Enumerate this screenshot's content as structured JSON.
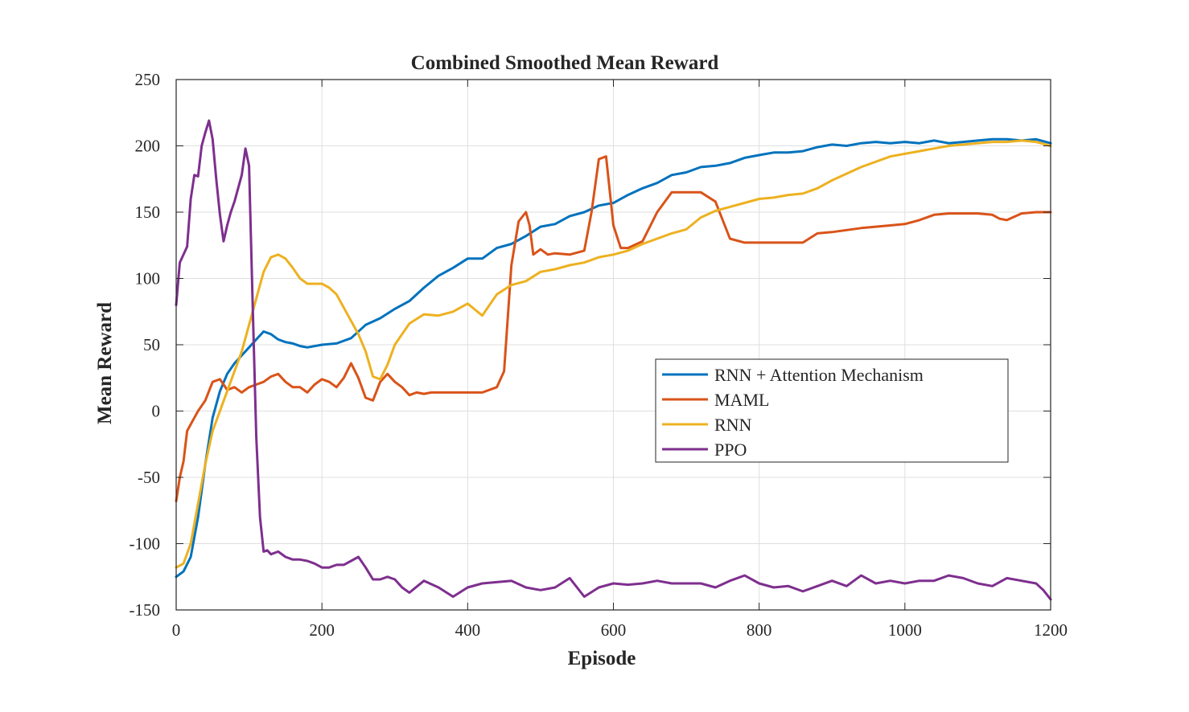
{
  "chart_data": {
    "type": "line",
    "title": "Combined Smoothed Mean Reward",
    "xlabel": "Episode",
    "ylabel": "Mean Reward",
    "xlim": [
      0,
      1200
    ],
    "ylim": [
      -150,
      250
    ],
    "xticks": [
      0,
      200,
      400,
      600,
      800,
      1000,
      1200
    ],
    "yticks": [
      -150,
      -100,
      -50,
      0,
      50,
      100,
      150,
      200,
      250
    ],
    "grid": true,
    "legend_position": "right",
    "series": [
      {
        "name": "RNN + Attention Mechanism",
        "color": "#0072BD",
        "x": [
          0,
          10,
          20,
          30,
          40,
          50,
          60,
          70,
          80,
          90,
          100,
          110,
          120,
          130,
          140,
          150,
          160,
          170,
          180,
          200,
          220,
          240,
          260,
          280,
          300,
          320,
          340,
          360,
          380,
          400,
          420,
          440,
          460,
          480,
          500,
          520,
          540,
          560,
          580,
          600,
          620,
          640,
          660,
          680,
          700,
          720,
          740,
          760,
          780,
          800,
          820,
          840,
          860,
          880,
          900,
          920,
          940,
          960,
          980,
          1000,
          1020,
          1040,
          1060,
          1080,
          1100,
          1120,
          1140,
          1160,
          1180,
          1200
        ],
        "values": [
          -125,
          -121,
          -110,
          -80,
          -40,
          -5,
          15,
          28,
          36,
          42,
          48,
          54,
          60,
          58,
          54,
          52,
          51,
          49,
          48,
          50,
          51,
          55,
          65,
          70,
          77,
          83,
          93,
          102,
          108,
          115,
          115,
          123,
          126,
          132,
          139,
          141,
          147,
          150,
          155,
          157,
          163,
          168,
          172,
          178,
          180,
          184,
          185,
          187,
          191,
          193,
          195,
          195,
          196,
          199,
          201,
          200,
          202,
          203,
          202,
          203,
          202,
          204,
          202,
          203,
          204,
          205,
          205,
          204,
          205,
          202
        ]
      },
      {
        "name": "MAML",
        "color": "#D95319",
        "x": [
          0,
          5,
          10,
          15,
          20,
          25,
          30,
          40,
          50,
          60,
          70,
          80,
          90,
          100,
          110,
          120,
          130,
          140,
          150,
          160,
          170,
          180,
          190,
          200,
          210,
          220,
          230,
          240,
          250,
          260,
          270,
          280,
          290,
          300,
          310,
          320,
          330,
          340,
          350,
          360,
          380,
          400,
          420,
          440,
          450,
          460,
          470,
          480,
          485,
          490,
          500,
          510,
          520,
          540,
          560,
          570,
          580,
          590,
          600,
          610,
          620,
          640,
          660,
          680,
          700,
          720,
          740,
          760,
          780,
          800,
          820,
          840,
          860,
          880,
          900,
          940,
          980,
          1000,
          1020,
          1040,
          1060,
          1080,
          1100,
          1120,
          1130,
          1140,
          1160,
          1180,
          1200
        ],
        "values": [
          -68,
          -50,
          -38,
          -15,
          -10,
          -5,
          0,
          8,
          22,
          24,
          16,
          18,
          14,
          18,
          20,
          22,
          26,
          28,
          22,
          18,
          18,
          14,
          20,
          24,
          22,
          18,
          25,
          36,
          25,
          10,
          8,
          22,
          28,
          22,
          18,
          12,
          14,
          13,
          14,
          14,
          14,
          14,
          14,
          18,
          30,
          110,
          143,
          150,
          140,
          118,
          122,
          118,
          119,
          118,
          121,
          150,
          190,
          192,
          140,
          123,
          123,
          128,
          150,
          165,
          165,
          165,
          158,
          130,
          127,
          127,
          127,
          127,
          127,
          134,
          135,
          138,
          140,
          141,
          144,
          148,
          149,
          149,
          149,
          148,
          145,
          144,
          149,
          150,
          150
        ]
      },
      {
        "name": "RNN",
        "color": "#EDB120",
        "x": [
          0,
          10,
          20,
          30,
          40,
          50,
          60,
          70,
          80,
          90,
          100,
          110,
          120,
          130,
          140,
          150,
          160,
          170,
          180,
          190,
          200,
          210,
          220,
          230,
          240,
          250,
          260,
          270,
          280,
          290,
          300,
          310,
          320,
          340,
          360,
          380,
          400,
          420,
          440,
          460,
          480,
          500,
          520,
          540,
          560,
          580,
          600,
          620,
          640,
          660,
          680,
          700,
          720,
          740,
          760,
          780,
          800,
          820,
          840,
          860,
          880,
          900,
          940,
          980,
          1000,
          1020,
          1040,
          1060,
          1080,
          1100,
          1120,
          1140,
          1160,
          1180,
          1200
        ],
        "values": [
          -118,
          -115,
          -100,
          -70,
          -40,
          -15,
          0,
          15,
          30,
          45,
          65,
          85,
          105,
          116,
          118,
          115,
          108,
          100,
          96,
          96,
          96,
          93,
          88,
          78,
          68,
          58,
          45,
          26,
          24,
          35,
          50,
          58,
          66,
          73,
          72,
          75,
          81,
          72,
          88,
          95,
          98,
          105,
          107,
          110,
          112,
          116,
          118,
          121,
          126,
          130,
          134,
          137,
          146,
          151,
          154,
          157,
          160,
          161,
          163,
          164,
          168,
          174,
          184,
          192,
          194,
          196,
          198,
          200,
          201,
          202,
          203,
          203,
          204,
          203,
          200
        ]
      },
      {
        "name": "PPO",
        "color": "#7E2F8E",
        "x": [
          0,
          5,
          10,
          15,
          20,
          25,
          30,
          35,
          40,
          45,
          50,
          55,
          60,
          65,
          70,
          75,
          80,
          85,
          90,
          95,
          100,
          105,
          110,
          115,
          120,
          125,
          130,
          140,
          150,
          160,
          170,
          180,
          190,
          200,
          210,
          220,
          230,
          240,
          250,
          260,
          270,
          280,
          290,
          300,
          310,
          320,
          340,
          360,
          380,
          400,
          420,
          440,
          460,
          480,
          500,
          520,
          540,
          560,
          580,
          600,
          620,
          640,
          660,
          680,
          700,
          720,
          740,
          760,
          780,
          800,
          820,
          840,
          860,
          880,
          900,
          920,
          940,
          960,
          980,
          1000,
          1020,
          1040,
          1060,
          1080,
          1100,
          1120,
          1140,
          1160,
          1180,
          1190,
          1200
        ],
        "values": [
          80,
          112,
          118,
          124,
          160,
          178,
          177,
          200,
          210,
          219,
          205,
          175,
          148,
          128,
          140,
          150,
          158,
          168,
          178,
          198,
          185,
          80,
          -20,
          -80,
          -106,
          -105,
          -108,
          -106,
          -110,
          -112,
          -112,
          -113,
          -115,
          -118,
          -118,
          -116,
          -116,
          -113,
          -110,
          -118,
          -127,
          -127,
          -125,
          -127,
          -133,
          -137,
          -128,
          -133,
          -140,
          -133,
          -130,
          -129,
          -128,
          -133,
          -135,
          -133,
          -126,
          -140,
          -133,
          -130,
          -131,
          -130,
          -128,
          -130,
          -130,
          -130,
          -133,
          -128,
          -124,
          -130,
          -133,
          -132,
          -136,
          -132,
          -128,
          -132,
          -124,
          -130,
          -128,
          -130,
          -128,
          -128,
          -124,
          -126,
          -130,
          -132,
          -126,
          -128,
          -130,
          -135,
          -142
        ]
      }
    ]
  }
}
